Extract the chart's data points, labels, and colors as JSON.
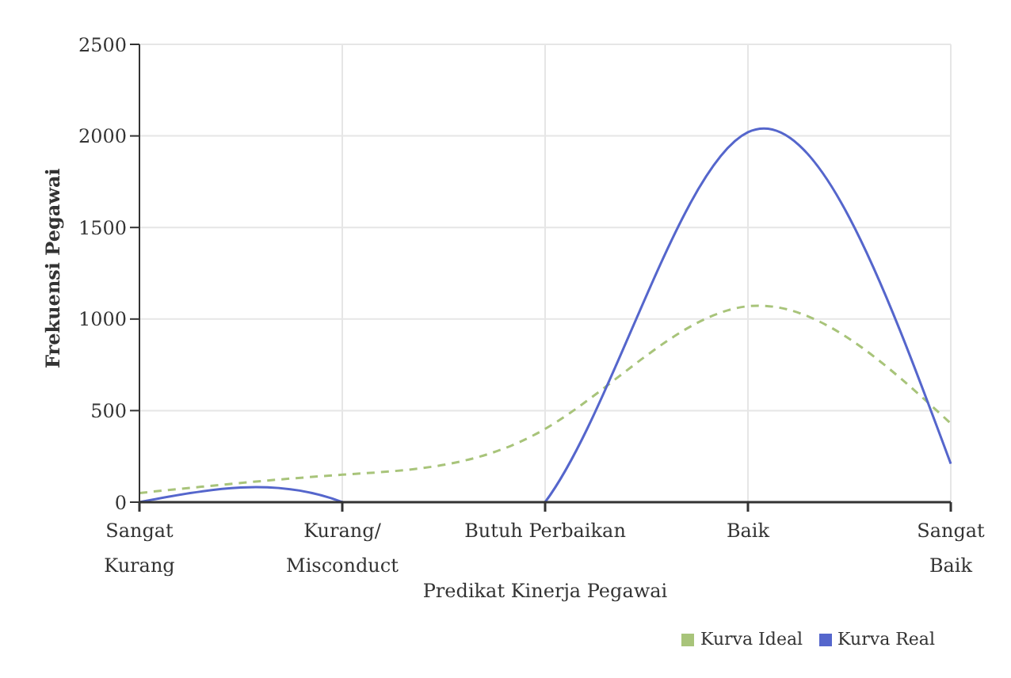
{
  "chart_data": {
    "type": "line",
    "xlabel": "Predikat Kinerja Pegawai",
    "ylabel": "Frekuensi Pegawai",
    "categories": [
      "Sangat Kurang",
      "Kurang/Misconduct",
      "Butuh Perbaikan",
      "Baik",
      "Sangat Baik"
    ],
    "series": [
      {
        "name": "Kurva Ideal",
        "color": "#a8c47a",
        "line_style": "dashed",
        "values": [
          50,
          150,
          400,
          1070,
          430
        ]
      },
      {
        "name": "Kurva Real",
        "color": "#5566cc",
        "line_style": "solid",
        "values": [
          0,
          0,
          0,
          2020,
          210
        ]
      }
    ],
    "ylim": [
      0,
      2500
    ],
    "yticks": [
      0,
      500,
      1000,
      1500,
      2000,
      2500
    ],
    "grid": true,
    "legend": "bottom right",
    "marker": "none"
  }
}
